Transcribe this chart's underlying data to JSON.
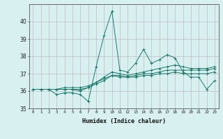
{
  "xlabel": "Humidex (Indice chaleur)",
  "bg_color": "#d8f0f0",
  "line_color": "#1a7a6a",
  "x_values": [
    0,
    1,
    2,
    3,
    4,
    5,
    6,
    7,
    8,
    9,
    10,
    11,
    12,
    13,
    14,
    15,
    16,
    17,
    18,
    19,
    20,
    21,
    22,
    23
  ],
  "series1": [
    36.1,
    36.1,
    36.1,
    35.8,
    35.9,
    35.9,
    35.8,
    35.4,
    37.4,
    39.2,
    40.6,
    37.2,
    37.1,
    37.6,
    38.4,
    37.6,
    37.8,
    38.1,
    37.9,
    37.1,
    36.8,
    36.8,
    36.1,
    36.6
  ],
  "series2": [
    36.1,
    36.1,
    36.1,
    36.1,
    36.1,
    36.1,
    36.0,
    36.2,
    36.5,
    36.8,
    37.1,
    37.0,
    36.9,
    37.0,
    37.1,
    37.2,
    37.3,
    37.4,
    37.5,
    37.4,
    37.3,
    37.3,
    37.3,
    37.4
  ],
  "series3": [
    36.1,
    36.1,
    36.1,
    36.1,
    36.1,
    36.1,
    36.1,
    36.2,
    36.4,
    36.6,
    36.9,
    36.9,
    36.8,
    36.9,
    37.0,
    37.0,
    37.1,
    37.2,
    37.2,
    37.2,
    37.2,
    37.2,
    37.2,
    37.3
  ],
  "series4": [
    36.1,
    36.1,
    36.1,
    36.1,
    36.2,
    36.2,
    36.2,
    36.3,
    36.5,
    36.7,
    36.9,
    36.8,
    36.8,
    36.8,
    36.9,
    36.9,
    37.0,
    37.0,
    37.1,
    37.0,
    37.0,
    37.0,
    37.0,
    37.1
  ],
  "ylim": [
    35,
    41
  ],
  "yticks": [
    35,
    36,
    37,
    38,
    39,
    40
  ],
  "xticks": [
    0,
    1,
    2,
    3,
    4,
    5,
    6,
    7,
    8,
    9,
    10,
    11,
    12,
    13,
    14,
    15,
    16,
    17,
    18,
    19,
    20,
    21,
    22,
    23
  ]
}
